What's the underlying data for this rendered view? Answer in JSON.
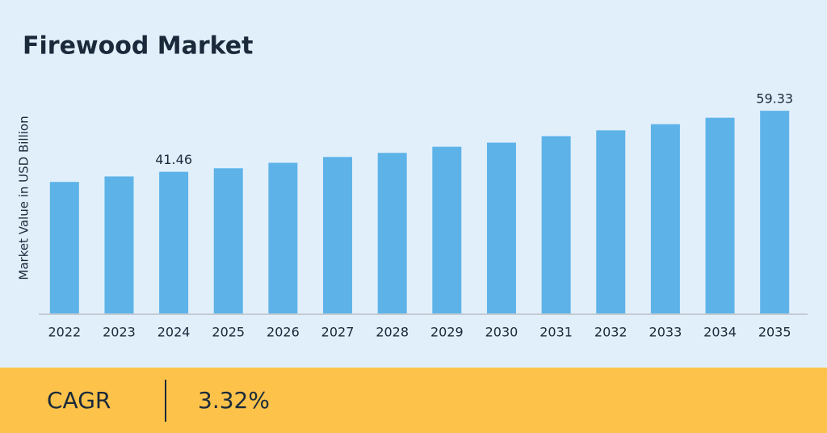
{
  "chart_data": {
    "type": "bar",
    "title": "Firewood Market",
    "y_label": "Market Value in USD Billion",
    "categories": [
      "2022",
      "2023",
      "2024",
      "2025",
      "2026",
      "2027",
      "2028",
      "2029",
      "2030",
      "2031",
      "2032",
      "2033",
      "2034",
      "2035"
    ],
    "values": [
      38.5,
      40.1,
      41.46,
      42.5,
      44.1,
      45.8,
      47.0,
      48.8,
      50.0,
      51.9,
      53.6,
      55.4,
      57.3,
      59.33
    ],
    "value_labels": [
      null,
      null,
      "41.46",
      null,
      null,
      null,
      null,
      null,
      null,
      null,
      null,
      null,
      null,
      "59.33"
    ],
    "color": "#5db3e8",
    "ylim": [
      0,
      70
    ]
  },
  "footer": {
    "label": "CAGR",
    "value": "3.32%"
  }
}
